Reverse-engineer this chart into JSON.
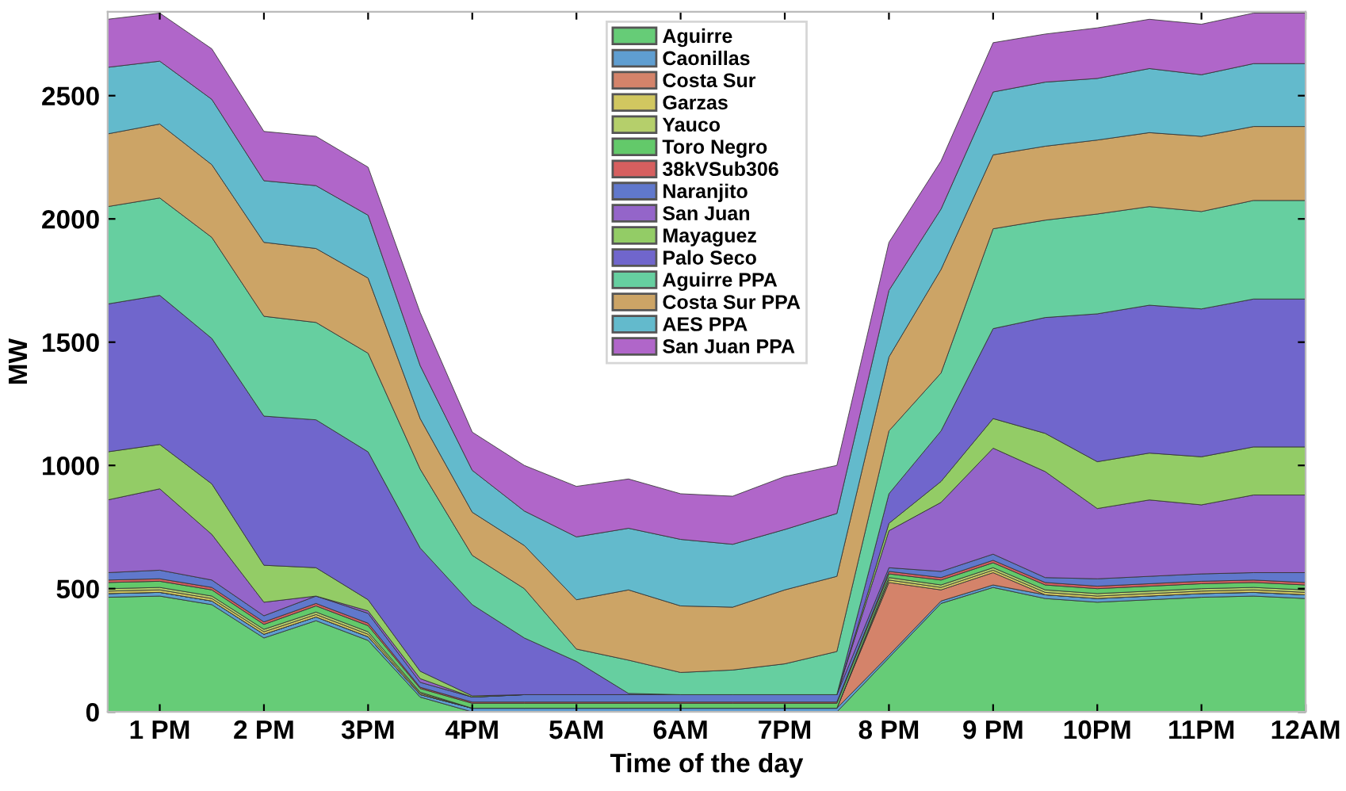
{
  "chart_data": {
    "type": "area",
    "stacked": true,
    "xlabel": "Time of the day",
    "ylabel": "MW",
    "categories": [
      null,
      "1 PM",
      null,
      "2 PM",
      null,
      "3PM",
      null,
      "4PM",
      null,
      "5AM",
      null,
      "6AM",
      null,
      "7PM",
      null,
      "8 PM",
      null,
      "9 PM",
      null,
      "10PM",
      null,
      "11PM",
      null,
      "12AM"
    ],
    "ylim": [
      0,
      2840
    ],
    "yticks": [
      0,
      500,
      1000,
      1500,
      2000,
      2500
    ],
    "grid": false,
    "legend": "top",
    "series": [
      {
        "name": "Aguirre",
        "color": "#66cc77",
        "values": [
          465,
          470,
          435,
          300,
          370,
          290,
          60,
          0,
          0,
          0,
          0,
          0,
          0,
          0,
          0,
          220,
          440,
          505,
          460,
          445,
          455,
          465,
          470,
          460
        ]
      },
      {
        "name": "Caonillas",
        "color": "#5f9ed1",
        "values": [
          15,
          15,
          15,
          15,
          15,
          15,
          10,
          15,
          15,
          15,
          15,
          15,
          15,
          15,
          15,
          10,
          10,
          10,
          15,
          15,
          15,
          15,
          15,
          15
        ]
      },
      {
        "name": "Costa Sur",
        "color": "#d4836a",
        "values": [
          0,
          0,
          0,
          0,
          0,
          0,
          0,
          0,
          0,
          0,
          0,
          0,
          0,
          0,
          0,
          295,
          45,
          50,
          0,
          0,
          0,
          0,
          0,
          0
        ]
      },
      {
        "name": "Garzas",
        "color": "#d1c760",
        "values": [
          10,
          10,
          10,
          10,
          10,
          10,
          5,
          0,
          0,
          0,
          0,
          0,
          0,
          0,
          0,
          10,
          10,
          10,
          10,
          10,
          10,
          10,
          10,
          10
        ]
      },
      {
        "name": "Yauco",
        "color": "#b5cf6b",
        "values": [
          10,
          10,
          10,
          10,
          10,
          10,
          5,
          0,
          0,
          0,
          0,
          0,
          0,
          0,
          0,
          10,
          10,
          10,
          10,
          10,
          10,
          10,
          10,
          10
        ]
      },
      {
        "name": "Toro Negro",
        "color": "#63c96a",
        "values": [
          25,
          25,
          25,
          20,
          25,
          25,
          15,
          20,
          20,
          20,
          20,
          20,
          20,
          20,
          20,
          15,
          20,
          20,
          20,
          20,
          20,
          20,
          20,
          20
        ]
      },
      {
        "name": "38kVSub306",
        "color": "#d65f5f",
        "values": [
          10,
          10,
          10,
          10,
          10,
          10,
          5,
          5,
          5,
          5,
          5,
          5,
          5,
          5,
          5,
          10,
          10,
          10,
          10,
          10,
          10,
          10,
          10,
          10
        ]
      },
      {
        "name": "Naranjito",
        "color": "#6078cc",
        "values": [
          30,
          35,
          30,
          25,
          30,
          40,
          20,
          20,
          30,
          30,
          30,
          30,
          30,
          30,
          30,
          15,
          25,
          25,
          20,
          30,
          30,
          30,
          30,
          40
        ]
      },
      {
        "name": "San Juan",
        "color": "#9465c9",
        "values": [
          295,
          330,
          185,
          55,
          0,
          10,
          15,
          0,
          0,
          0,
          0,
          0,
          0,
          0,
          0,
          150,
          280,
          430,
          430,
          285,
          310,
          280,
          315,
          315
        ]
      },
      {
        "name": "Mayaguez",
        "color": "#93cc66",
        "values": [
          195,
          180,
          205,
          150,
          115,
          45,
          30,
          5,
          0,
          0,
          0,
          0,
          0,
          0,
          0,
          30,
          85,
          120,
          155,
          190,
          190,
          195,
          195,
          195
        ]
      },
      {
        "name": "Palo Seco",
        "color": "#7066cc",
        "values": [
          600,
          605,
          590,
          605,
          600,
          600,
          500,
          370,
          230,
          135,
          5,
          0,
          0,
          0,
          0,
          120,
          205,
          365,
          470,
          600,
          600,
          600,
          600,
          600
        ]
      },
      {
        "name": "Aguirre PPA",
        "color": "#66cfa0",
        "values": [
          395,
          395,
          410,
          405,
          395,
          400,
          320,
          200,
          200,
          50,
          135,
          90,
          100,
          125,
          175,
          255,
          235,
          405,
          395,
          405,
          400,
          395,
          400,
          400
        ]
      },
      {
        "name": "Costa Sur PPA",
        "color": "#cca466",
        "values": [
          295,
          300,
          295,
          300,
          300,
          305,
          205,
          175,
          175,
          200,
          285,
          270,
          255,
          300,
          305,
          300,
          420,
          300,
          300,
          300,
          300,
          305,
          300,
          300
        ]
      },
      {
        "name": "AES PPA",
        "color": "#63bacc",
        "values": [
          270,
          255,
          265,
          250,
          255,
          255,
          215,
          170,
          140,
          255,
          250,
          270,
          255,
          245,
          255,
          270,
          245,
          255,
          260,
          250,
          260,
          250,
          255,
          255
        ]
      },
      {
        "name": "San Juan PPA",
        "color": "#b066c9",
        "values": [
          195,
          195,
          205,
          200,
          200,
          195,
          215,
          155,
          185,
          205,
          200,
          185,
          195,
          215,
          195,
          195,
          195,
          200,
          195,
          205,
          200,
          205,
          205,
          205
        ]
      }
    ]
  }
}
